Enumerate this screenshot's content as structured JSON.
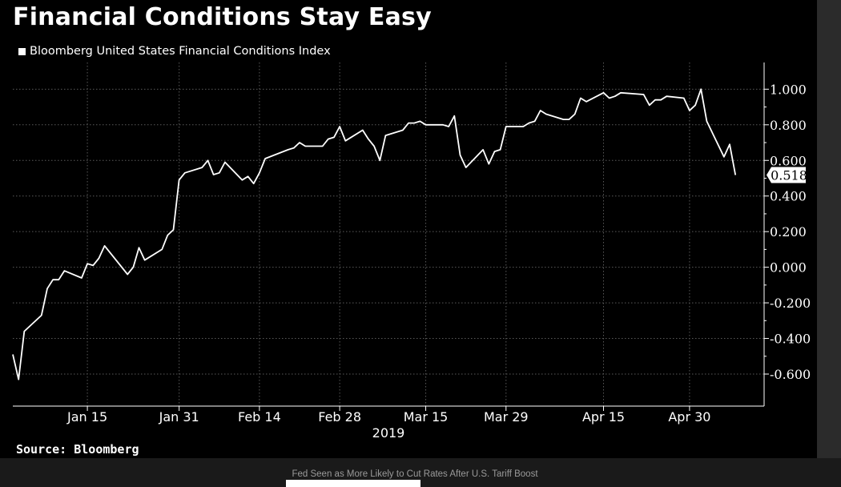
{
  "header": {
    "title": "Financial Conditions Stay Easy",
    "source": "Source: Bloomberg"
  },
  "caption": "Fed Seen as More Likely to Cut Rates After U.S. Tariff Boost",
  "colors": {
    "background": "#000000",
    "line": "#ffffff",
    "grid": "#5a5a5a"
  },
  "chart_data": {
    "type": "line",
    "legend": "Bloomberg United States Financial Conditions Index",
    "legend_position": "top-left",
    "grid": true,
    "x_tick_labels": [
      "Jan 15",
      "Jan 31",
      "Feb 14",
      "Feb 28",
      "Mar 15",
      "Mar 29",
      "Apr 15",
      "Apr 30"
    ],
    "x_tick_dates": [
      "2019-01-15",
      "2019-01-31",
      "2019-02-14",
      "2019-02-28",
      "2019-03-15",
      "2019-03-29",
      "2019-04-15",
      "2019-04-30"
    ],
    "x_year_label": "2019",
    "xlim": [
      "2019-01-02",
      "2019-05-13"
    ],
    "y_tick_labels": [
      "1.000",
      "0.800",
      "0.600",
      "0.400",
      "0.200",
      "0.000",
      "-0.200",
      "-0.400",
      "-0.600"
    ],
    "y_ticks": [
      1.0,
      0.8,
      0.6,
      0.4,
      0.2,
      0.0,
      -0.2,
      -0.4,
      -0.6
    ],
    "ylim": [
      -0.78,
      1.15
    ],
    "last_value_label": "0.518",
    "series": [
      {
        "name": "Bloomberg United States Financial Conditions Index",
        "x": [
          "2019-01-02",
          "2019-01-03",
          "2019-01-04",
          "2019-01-07",
          "2019-01-08",
          "2019-01-09",
          "2019-01-10",
          "2019-01-11",
          "2019-01-14",
          "2019-01-15",
          "2019-01-16",
          "2019-01-17",
          "2019-01-18",
          "2019-01-22",
          "2019-01-23",
          "2019-01-24",
          "2019-01-25",
          "2019-01-28",
          "2019-01-29",
          "2019-01-30",
          "2019-01-31",
          "2019-02-01",
          "2019-02-04",
          "2019-02-05",
          "2019-02-06",
          "2019-02-07",
          "2019-02-08",
          "2019-02-11",
          "2019-02-12",
          "2019-02-13",
          "2019-02-14",
          "2019-02-15",
          "2019-02-19",
          "2019-02-20",
          "2019-02-21",
          "2019-02-22",
          "2019-02-25",
          "2019-02-26",
          "2019-02-27",
          "2019-02-28",
          "2019-03-01",
          "2019-03-04",
          "2019-03-05",
          "2019-03-06",
          "2019-03-07",
          "2019-03-08",
          "2019-03-11",
          "2019-03-12",
          "2019-03-13",
          "2019-03-14",
          "2019-03-15",
          "2019-03-18",
          "2019-03-19",
          "2019-03-20",
          "2019-03-21",
          "2019-03-22",
          "2019-03-25",
          "2019-03-26",
          "2019-03-27",
          "2019-03-28",
          "2019-03-29",
          "2019-04-01",
          "2019-04-02",
          "2019-04-03",
          "2019-04-04",
          "2019-04-05",
          "2019-04-08",
          "2019-04-09",
          "2019-04-10",
          "2019-04-11",
          "2019-04-12",
          "2019-04-15",
          "2019-04-16",
          "2019-04-17",
          "2019-04-18",
          "2019-04-22",
          "2019-04-23",
          "2019-04-24",
          "2019-04-25",
          "2019-04-26",
          "2019-04-29",
          "2019-04-30",
          "2019-05-01",
          "2019-05-02",
          "2019-05-03",
          "2019-05-06",
          "2019-05-07",
          "2019-05-08",
          "2019-05-09",
          "2019-05-10"
        ],
        "values": [
          -0.49,
          -0.63,
          -0.36,
          -0.27,
          -0.12,
          -0.07,
          -0.07,
          -0.02,
          -0.06,
          0.02,
          0.01,
          0.05,
          0.12,
          -0.04,
          0.0,
          0.11,
          0.04,
          0.1,
          0.18,
          0.21,
          0.49,
          0.53,
          0.56,
          0.6,
          0.52,
          0.53,
          0.59,
          0.49,
          0.51,
          0.47,
          0.53,
          0.61,
          0.66,
          0.67,
          0.7,
          0.68,
          0.68,
          0.72,
          0.73,
          0.79,
          0.71,
          0.77,
          0.72,
          0.68,
          0.6,
          0.74,
          0.77,
          0.81,
          0.81,
          0.82,
          0.8,
          0.8,
          0.79,
          0.85,
          0.63,
          0.56,
          0.66,
          0.58,
          0.65,
          0.66,
          0.79,
          0.79,
          0.81,
          0.82,
          0.88,
          0.86,
          0.83,
          0.83,
          0.86,
          0.95,
          0.93,
          0.98,
          0.95,
          0.96,
          0.98,
          0.97,
          0.91,
          0.94,
          0.94,
          0.96,
          0.95,
          0.88,
          0.91,
          1.0,
          0.82,
          0.62,
          0.69,
          0.518,
          0.518,
          0.518
        ]
      }
    ]
  }
}
